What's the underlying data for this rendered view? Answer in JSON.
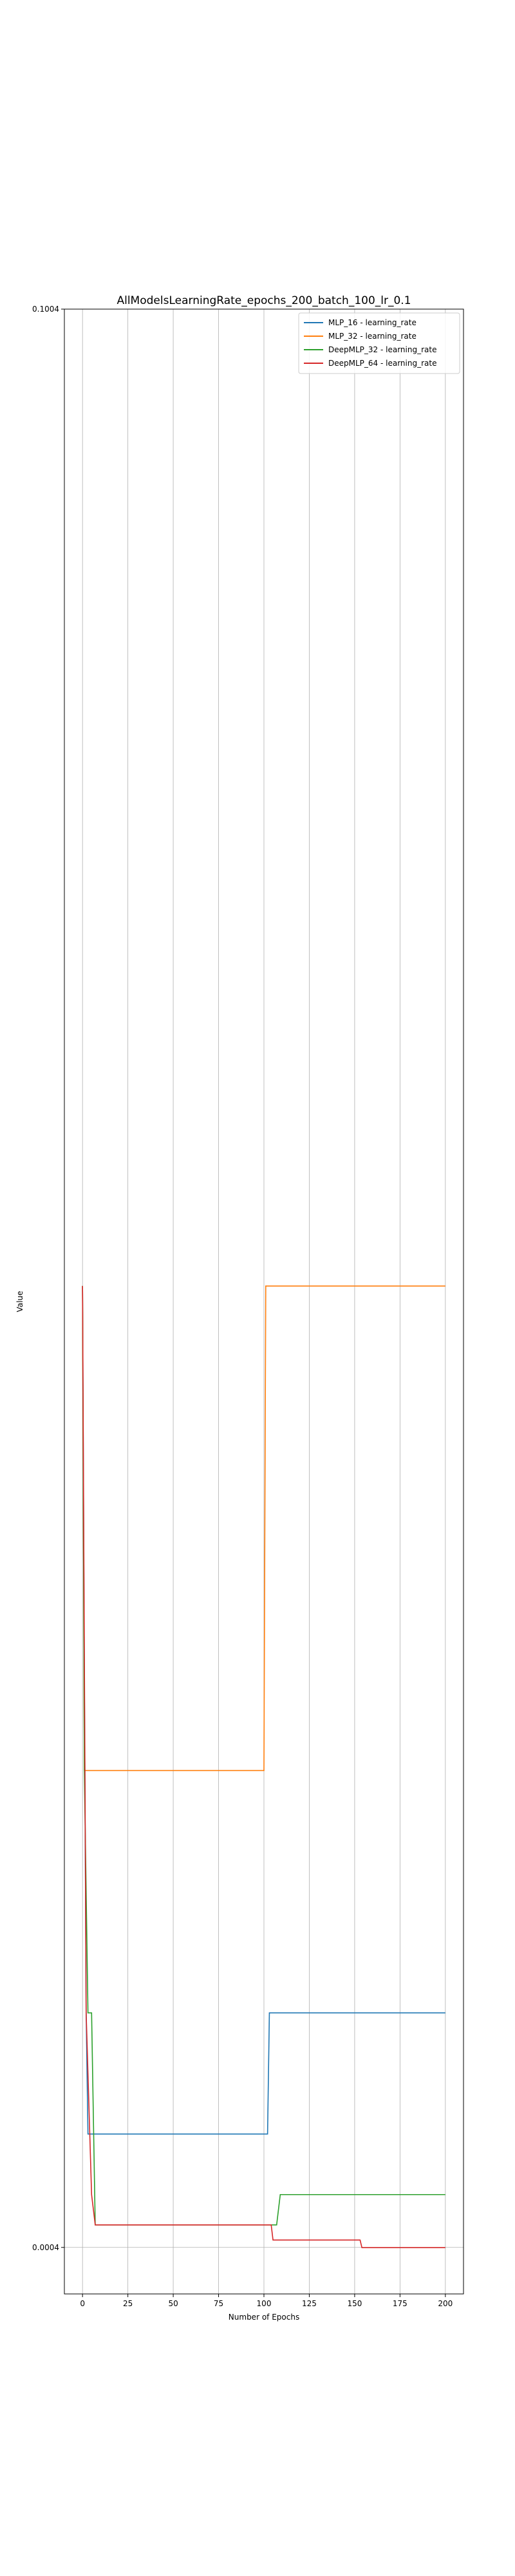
{
  "chart_data": {
    "type": "line",
    "title": "AllModelsLearningRate_epochs_200_batch_100_lr_0.1",
    "xlabel": "Number of Epochs",
    "ylabel": "Value",
    "xlim": [
      -10,
      210
    ],
    "ylim": [
      -0.002,
      0.1004
    ],
    "x_ticks": [
      0,
      25,
      50,
      75,
      100,
      125,
      150,
      175,
      200
    ],
    "y_ticks": [
      0.0004,
      0.1004
    ],
    "y_tick_labels": [
      "0.0004",
      "0.1004"
    ],
    "grid": "x-axis vertical lines and y ticks",
    "legend_position": "top-right",
    "series": [
      {
        "name": "MLP_16 - learning_rate",
        "color": "#1f77b4",
        "points": [
          [
            0,
            0.05
          ],
          [
            1,
            0.03
          ],
          [
            2,
            0.0125
          ],
          [
            3,
            0.00625
          ],
          [
            102,
            0.00625
          ],
          [
            103,
            0.0125
          ],
          [
            200,
            0.0125
          ]
        ]
      },
      {
        "name": "MLP_32 - learning_rate",
        "color": "#ff7f0e",
        "points": [
          [
            0,
            0.05
          ],
          [
            1,
            0.025
          ],
          [
            100,
            0.025
          ],
          [
            101,
            0.05
          ],
          [
            200,
            0.05
          ]
        ]
      },
      {
        "name": "DeepMLP_32 - learning_rate",
        "color": "#2ca02c",
        "points": [
          [
            0,
            0.05
          ],
          [
            1,
            0.025
          ],
          [
            3,
            0.0125
          ],
          [
            5,
            0.0125
          ],
          [
            7,
            0.0015625
          ],
          [
            107,
            0.0015625
          ],
          [
            109,
            0.003125
          ],
          [
            200,
            0.003125
          ]
        ]
      },
      {
        "name": "DeepMLP_64 - learning_rate",
        "color": "#d62728",
        "points": [
          [
            0,
            0.05
          ],
          [
            2,
            0.0125
          ],
          [
            5,
            0.003125
          ],
          [
            7,
            0.0015625
          ],
          [
            104,
            0.0015625
          ],
          [
            105,
            0.00078125
          ],
          [
            153,
            0.00078125
          ],
          [
            154,
            0.000390625
          ],
          [
            200,
            0.000390625
          ]
        ]
      }
    ]
  }
}
